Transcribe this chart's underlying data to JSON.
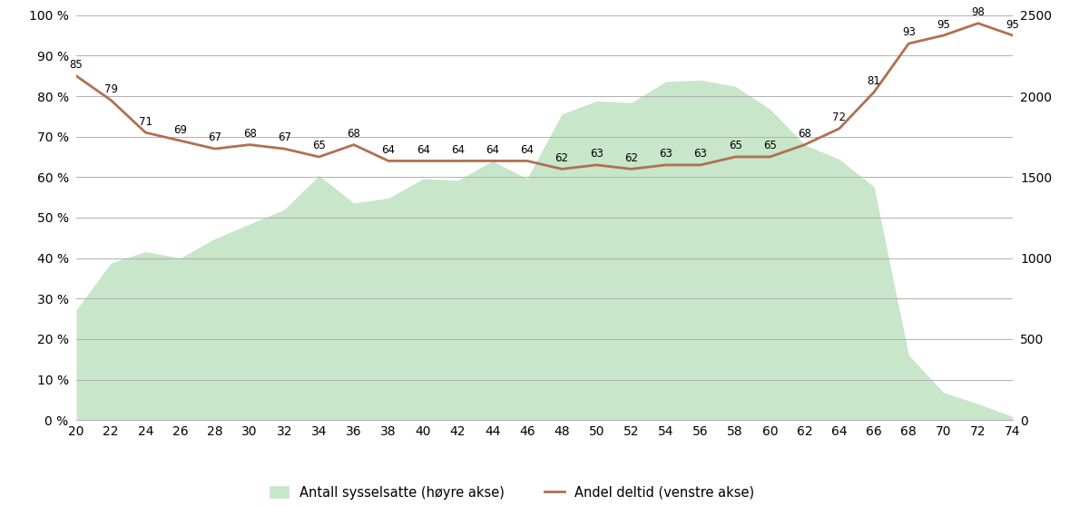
{
  "ages": [
    20,
    22,
    24,
    26,
    28,
    30,
    32,
    34,
    36,
    38,
    40,
    42,
    44,
    46,
    48,
    50,
    52,
    54,
    56,
    58,
    60,
    62,
    64,
    66,
    68,
    70,
    72,
    74
  ],
  "deltid_pct": [
    85,
    79,
    71,
    69,
    67,
    68,
    67,
    65,
    68,
    64,
    64,
    64,
    64,
    64,
    62,
    63,
    62,
    63,
    63,
    65,
    65,
    68,
    72,
    81,
    93,
    95,
    98,
    95
  ],
  "sysselsatte": [
    680,
    970,
    1040,
    1000,
    1120,
    1210,
    1300,
    1510,
    1340,
    1370,
    1490,
    1480,
    1600,
    1490,
    1890,
    1970,
    1960,
    2090,
    2100,
    2060,
    1920,
    1700,
    1610,
    1440,
    400,
    170,
    100,
    20
  ],
  "fill_color": "#c8e6c9",
  "line_color": "#b07050",
  "legend_area": "Antall sysselsatte (høyre akse)",
  "legend_line": "Andel deltid (venstre akse)",
  "ylim_left": [
    0,
    100
  ],
  "ylim_right": [
    0,
    2500
  ],
  "yticks_left": [
    0,
    10,
    20,
    30,
    40,
    50,
    60,
    70,
    80,
    90,
    100
  ],
  "yticks_right": [
    0,
    500,
    1000,
    1500,
    2000,
    2500
  ],
  "background_color": "#ffffff",
  "grid_color": "#b0b0b0"
}
